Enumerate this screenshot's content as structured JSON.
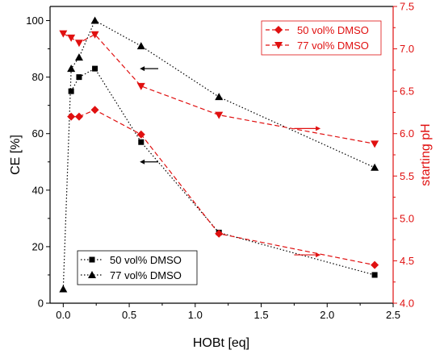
{
  "chart_data": {
    "type": "line",
    "xlabel": "HOBt [eq]",
    "ylabel": "CE [%]",
    "y2label": "starting pH",
    "xlim": [
      -0.1,
      2.5
    ],
    "ylim": [
      0,
      105
    ],
    "y2lim": [
      4.0,
      7.5
    ],
    "xticks": [
      "0.0",
      "0.5",
      "1.0",
      "1.5",
      "2.0",
      "2.5"
    ],
    "yticks": [
      "0",
      "20",
      "40",
      "60",
      "80",
      "100"
    ],
    "y2ticks": [
      "4.0",
      "4.5",
      "5.0",
      "5.5",
      "6.0",
      "6.5",
      "7.0",
      "7.5"
    ],
    "grid": false,
    "legend_ce": {
      "placement": "bottom-left",
      "entries": [
        "50 vol% DMSO",
        "77 vol% DMSO"
      ]
    },
    "legend_ph": {
      "placement": "top-right",
      "entries": [
        "50 vol% DMSO",
        "77 vol% DMSO"
      ]
    },
    "series": [
      {
        "name": "50 vol% DMSO",
        "axis": "left",
        "marker": "square",
        "color": "#000000",
        "line": "dotted",
        "x": [
          0.06,
          0.12,
          0.24,
          0.59,
          1.18,
          2.36
        ],
        "values": [
          75,
          80,
          83,
          57,
          25,
          10
        ]
      },
      {
        "name": "77 vol% DMSO",
        "axis": "left",
        "marker": "triangle-up",
        "color": "#000000",
        "line": "dotted",
        "x": [
          0,
          0.06,
          0.12,
          0.24,
          0.59,
          1.18,
          2.36
        ],
        "values": [
          5,
          83,
          87,
          100,
          91,
          73,
          48
        ]
      },
      {
        "name": "50 vol% DMSO",
        "axis": "right",
        "marker": "diamond",
        "color": "#e01010",
        "line": "dashed",
        "x": [
          0.06,
          0.12,
          0.24,
          0.59,
          1.18,
          2.36
        ],
        "values": [
          6.2,
          6.2,
          6.28,
          5.99,
          4.82,
          4.45
        ]
      },
      {
        "name": "77 vol% DMSO",
        "axis": "right",
        "marker": "triangle-down",
        "color": "#e01010",
        "line": "dashed",
        "x": [
          0,
          0.06,
          0.12,
          0.24,
          0.59,
          1.18,
          2.36
        ],
        "values": [
          7.18,
          7.13,
          7.07,
          7.17,
          6.56,
          6.22,
          5.88
        ]
      }
    ],
    "arrows": [
      {
        "direction": "left",
        "color": "#000000",
        "x_from": 0.69,
        "x_to": 0.58,
        "y": 61,
        "axis": "left"
      },
      {
        "direction": "left",
        "color": "#000000",
        "x_from": 0.69,
        "x_to": 0.58,
        "y": 0,
        "axis": "left",
        "y_pixel_ref": "ce_arrow_2"
      },
      {
        "direction": "right",
        "color": "#e01010",
        "x_from": 1.75,
        "x_to": 1.92,
        "y": 6.06,
        "axis": "right"
      },
      {
        "direction": "right",
        "color": "#e01010",
        "x_from": 1.75,
        "x_to": 1.92,
        "y": 4.57,
        "axis": "right"
      }
    ]
  }
}
